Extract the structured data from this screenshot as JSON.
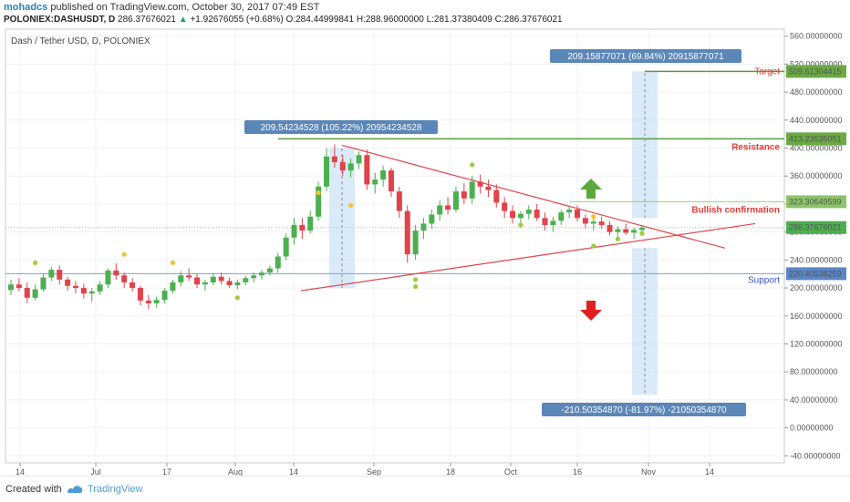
{
  "header": {
    "author": "mohadcs",
    "published": "published on TradingView.com, October 30, 2017 07:49 EST",
    "symbol": "POLONIEX:DASHUSDT, D",
    "last": "286.37676021",
    "change_arrow": "▲",
    "change": "+1.92676055 (+0.68%)",
    "ohlc": "O:284.44999841 H:288.96000000 L:281.37380409 C:286.37676021"
  },
  "footer": {
    "created": "Created with",
    "brand": "TradingView"
  },
  "chart_data": {
    "type": "candlestick",
    "title": "Dash / Tether USD, D, POLONIEX",
    "ylim": [
      -50,
      570
    ],
    "y_ticks": [
      "560.00000000",
      "520.00000000",
      "480.00000000",
      "440.00000000",
      "400.00000000",
      "360.00000000",
      "320.00000000",
      "280.00000000",
      "240.00000000",
      "200.00000000",
      "160.00000000",
      "120.00000000",
      "80.00000000",
      "40.00000000",
      "0.00000000",
      "-40.00000000"
    ],
    "x_ticks": [
      "14",
      "Jul",
      "17",
      "Aug",
      "14",
      "Sep",
      "18",
      "Oct",
      "16",
      "Nov",
      "14"
    ],
    "colors": {
      "up": "#4caf50",
      "down": "#e0434b",
      "target": "#e53935",
      "level": "#5a9e3c",
      "support": "#6aa5d8",
      "box": "#cfe3f7",
      "tag": "#5b86b8"
    },
    "price_labels": {
      "target": "509.61304415",
      "resistance": "413.23535051",
      "bullish": "323.30649599",
      "current": "286.37676021",
      "support": "220.40538259"
    },
    "annotations": {
      "target": "Target",
      "resistance": "Resistance",
      "bullish": "Bullish confirmation",
      "support": "Support",
      "measure_up": "209.54234528 (105.22%) 20954234528",
      "measure_target": "209.15877071 (69.84%) 20915877071",
      "measure_down": "-210.50354870 (-81.97%) -21050354870"
    },
    "candles": [
      [
        197,
        212,
        190,
        205
      ],
      [
        205,
        214,
        195,
        200
      ],
      [
        200,
        208,
        178,
        186
      ],
      [
        186,
        205,
        182,
        198
      ],
      [
        198,
        220,
        195,
        215
      ],
      [
        215,
        230,
        210,
        226
      ],
      [
        226,
        232,
        205,
        212
      ],
      [
        212,
        216,
        196,
        203
      ],
      [
        203,
        210,
        192,
        200
      ],
      [
        200,
        206,
        185,
        192
      ],
      [
        192,
        200,
        180,
        195
      ],
      [
        195,
        210,
        190,
        205
      ],
      [
        205,
        228,
        200,
        225
      ],
      [
        225,
        235,
        212,
        218
      ],
      [
        218,
        222,
        200,
        208
      ],
      [
        208,
        214,
        195,
        200
      ],
      [
        200,
        203,
        175,
        182
      ],
      [
        182,
        190,
        170,
        178
      ],
      [
        178,
        188,
        172,
        183
      ],
      [
        183,
        200,
        178,
        196
      ],
      [
        196,
        212,
        192,
        208
      ],
      [
        208,
        224,
        202,
        218
      ],
      [
        218,
        228,
        210,
        215
      ],
      [
        215,
        220,
        200,
        205
      ],
      [
        205,
        212,
        196,
        208
      ],
      [
        208,
        220,
        204,
        216
      ],
      [
        216,
        222,
        205,
        210
      ],
      [
        210,
        215,
        200,
        204
      ],
      [
        204,
        212,
        198,
        208
      ],
      [
        208,
        218,
        204,
        214
      ],
      [
        214,
        222,
        208,
        218
      ],
      [
        218,
        226,
        212,
        222
      ],
      [
        222,
        232,
        218,
        228
      ],
      [
        228,
        250,
        222,
        245
      ],
      [
        245,
        278,
        240,
        272
      ],
      [
        272,
        300,
        262,
        290
      ],
      [
        290,
        300,
        270,
        282
      ],
      [
        282,
        310,
        278,
        302
      ],
      [
        302,
        352,
        296,
        345
      ],
      [
        345,
        400,
        338,
        388
      ],
      [
        388,
        405,
        372,
        380
      ],
      [
        380,
        390,
        360,
        368
      ],
      [
        368,
        385,
        358,
        378
      ],
      [
        378,
        395,
        370,
        390
      ],
      [
        390,
        398,
        340,
        348
      ],
      [
        348,
        365,
        335,
        355
      ],
      [
        355,
        375,
        345,
        368
      ],
      [
        368,
        372,
        330,
        338
      ],
      [
        338,
        345,
        300,
        310
      ],
      [
        310,
        318,
        236,
        248
      ],
      [
        248,
        290,
        240,
        282
      ],
      [
        282,
        300,
        270,
        292
      ],
      [
        292,
        312,
        285,
        305
      ],
      [
        305,
        325,
        296,
        318
      ],
      [
        318,
        330,
        305,
        312
      ],
      [
        312,
        345,
        308,
        338
      ],
      [
        338,
        350,
        320,
        328
      ],
      [
        328,
        360,
        320,
        352
      ],
      [
        352,
        362,
        335,
        345
      ],
      [
        345,
        355,
        330,
        340
      ],
      [
        340,
        348,
        315,
        322
      ],
      [
        322,
        330,
        300,
        310
      ],
      [
        310,
        318,
        292,
        300
      ],
      [
        300,
        310,
        290,
        306
      ],
      [
        306,
        318,
        298,
        312
      ],
      [
        312,
        320,
        296,
        300
      ],
      [
        300,
        308,
        282,
        290
      ],
      [
        290,
        302,
        280,
        296
      ],
      [
        296,
        312,
        290,
        308
      ],
      [
        308,
        318,
        300,
        312
      ],
      [
        312,
        318,
        295,
        300
      ],
      [
        300,
        305,
        285,
        292
      ],
      [
        292,
        300,
        282,
        295
      ],
      [
        295,
        302,
        285,
        290
      ],
      [
        290,
        295,
        275,
        280
      ],
      [
        280,
        288,
        272,
        284
      ],
      [
        284,
        292,
        276,
        279
      ],
      [
        279,
        286,
        270,
        283
      ],
      [
        283,
        289,
        274,
        286
      ]
    ]
  }
}
